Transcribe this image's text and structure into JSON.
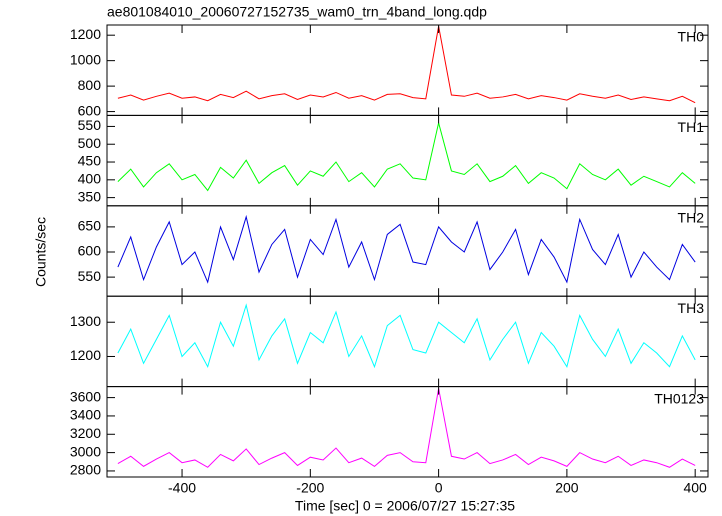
{
  "title": "ae801084010_20060727152735_wam0_trn_4band_long.qdp",
  "xlabel": "Time [sec] 0 = 2006/07/27 15:27:35",
  "ylabel": "Counts/sec",
  "chart_data": [
    {
      "type": "line",
      "x": [
        -500,
        -480,
        -460,
        -440,
        -420,
        -400,
        -380,
        -360,
        -340,
        -320,
        -300,
        -280,
        -260,
        -240,
        -220,
        -200,
        -180,
        -160,
        -140,
        -120,
        -100,
        -80,
        -60,
        -40,
        -20,
        0,
        20,
        40,
        60,
        80,
        100,
        120,
        140,
        160,
        180,
        200,
        220,
        240,
        260,
        280,
        300,
        320,
        340,
        360,
        380,
        400
      ],
      "series": [
        {
          "name": "TH0",
          "color": "#ff0000",
          "values": [
            705,
            730,
            690,
            720,
            745,
            705,
            715,
            685,
            735,
            710,
            760,
            700,
            725,
            740,
            695,
            730,
            715,
            750,
            705,
            725,
            690,
            735,
            740,
            710,
            700,
            1270,
            730,
            720,
            745,
            705,
            715,
            735,
            700,
            725,
            710,
            690,
            740,
            720,
            705,
            730,
            695,
            715,
            700,
            685,
            720,
            670
          ]
        }
      ],
      "xlim": [
        -517,
        420
      ],
      "xticks": [
        -400,
        -200,
        0,
        200,
        400
      ],
      "ylim": [
        570,
        1280
      ],
      "yticks": [
        600,
        800,
        1000,
        1200
      ]
    },
    {
      "type": "line",
      "x": [
        -500,
        -480,
        -460,
        -440,
        -420,
        -400,
        -380,
        -360,
        -340,
        -320,
        -300,
        -280,
        -260,
        -240,
        -220,
        -200,
        -180,
        -160,
        -140,
        -120,
        -100,
        -80,
        -60,
        -40,
        -20,
        0,
        20,
        40,
        60,
        80,
        100,
        120,
        140,
        160,
        180,
        200,
        220,
        240,
        260,
        280,
        300,
        320,
        340,
        360,
        380,
        400
      ],
      "series": [
        {
          "name": "TH1",
          "color": "#00ff00",
          "values": [
            395,
            430,
            380,
            420,
            445,
            400,
            415,
            370,
            435,
            405,
            455,
            390,
            420,
            440,
            385,
            425,
            410,
            450,
            395,
            420,
            380,
            430,
            445,
            405,
            400,
            560,
            425,
            415,
            445,
            395,
            410,
            440,
            390,
            420,
            405,
            375,
            445,
            415,
            400,
            430,
            385,
            410,
            395,
            380,
            420,
            390
          ]
        }
      ],
      "xlim": [
        -517,
        420
      ],
      "xticks": [
        -400,
        -200,
        0,
        200,
        400
      ],
      "ylim": [
        327,
        581
      ],
      "yticks": [
        350,
        400,
        450,
        500,
        550
      ]
    },
    {
      "type": "line",
      "x": [
        -500,
        -480,
        -460,
        -440,
        -420,
        -400,
        -380,
        -360,
        -340,
        -320,
        -300,
        -280,
        -260,
        -240,
        -220,
        -200,
        -180,
        -160,
        -140,
        -120,
        -100,
        -80,
        -60,
        -40,
        -20,
        0,
        20,
        40,
        60,
        80,
        100,
        120,
        140,
        160,
        180,
        200,
        220,
        240,
        260,
        280,
        300,
        320,
        340,
        360,
        380,
        400
      ],
      "series": [
        {
          "name": "TH2",
          "color": "#0000e0",
          "values": [
            570,
            630,
            545,
            610,
            660,
            575,
            600,
            540,
            650,
            585,
            670,
            560,
            615,
            645,
            550,
            625,
            595,
            665,
            570,
            620,
            545,
            635,
            655,
            580,
            575,
            650,
            620,
            600,
            660,
            565,
            600,
            645,
            555,
            625,
            590,
            540,
            665,
            605,
            575,
            635,
            550,
            600,
            570,
            545,
            615,
            580
          ]
        }
      ],
      "xlim": [
        -517,
        420
      ],
      "xticks": [
        -400,
        -200,
        0,
        200,
        400
      ],
      "ylim": [
        512,
        692
      ],
      "yticks": [
        550,
        600,
        650
      ]
    },
    {
      "type": "line",
      "x": [
        -500,
        -480,
        -460,
        -440,
        -420,
        -400,
        -380,
        -360,
        -340,
        -320,
        -300,
        -280,
        -260,
        -240,
        -220,
        -200,
        -180,
        -160,
        -140,
        -120,
        -100,
        -80,
        -60,
        -40,
        -20,
        0,
        20,
        40,
        60,
        80,
        100,
        120,
        140,
        160,
        180,
        200,
        220,
        240,
        260,
        280,
        300,
        320,
        340,
        360,
        380,
        400
      ],
      "series": [
        {
          "name": "TH3",
          "color": "#00ffff",
          "values": [
            1210,
            1280,
            1180,
            1250,
            1320,
            1200,
            1240,
            1170,
            1300,
            1230,
            1350,
            1190,
            1260,
            1310,
            1180,
            1270,
            1240,
            1330,
            1200,
            1260,
            1170,
            1290,
            1320,
            1220,
            1210,
            1300,
            1270,
            1240,
            1310,
            1190,
            1250,
            1300,
            1180,
            1270,
            1230,
            1170,
            1320,
            1250,
            1200,
            1280,
            1180,
            1240,
            1210,
            1170,
            1260,
            1190
          ]
        }
      ],
      "xlim": [
        -517,
        420
      ],
      "xticks": [
        -400,
        -200,
        0,
        200,
        400
      ],
      "ylim": [
        1112,
        1376
      ],
      "yticks": [
        1200,
        1300
      ]
    },
    {
      "type": "line",
      "x": [
        -500,
        -480,
        -460,
        -440,
        -420,
        -400,
        -380,
        -360,
        -340,
        -320,
        -300,
        -280,
        -260,
        -240,
        -220,
        -200,
        -180,
        -160,
        -140,
        -120,
        -100,
        -80,
        -60,
        -40,
        -20,
        0,
        20,
        40,
        60,
        80,
        100,
        120,
        140,
        160,
        180,
        200,
        220,
        240,
        260,
        280,
        300,
        320,
        340,
        360,
        380,
        400
      ],
      "series": [
        {
          "name": "TH0123",
          "color": "#ff00ff",
          "values": [
            2880,
            2960,
            2850,
            2930,
            3000,
            2890,
            2920,
            2840,
            2980,
            2910,
            3040,
            2870,
            2940,
            3000,
            2860,
            2950,
            2920,
            3050,
            2890,
            2940,
            2850,
            2970,
            3000,
            2900,
            2890,
            3700,
            2960,
            2930,
            3000,
            2880,
            2920,
            2980,
            2870,
            2950,
            2910,
            2850,
            3000,
            2930,
            2890,
            2960,
            2860,
            2920,
            2890,
            2840,
            2930,
            2860
          ]
        }
      ],
      "xlim": [
        -517,
        420
      ],
      "xticks": [
        -400,
        -200,
        0,
        200,
        400
      ],
      "ylim": [
        2734,
        3720
      ],
      "yticks": [
        2800,
        3000,
        3200,
        3400,
        3600
      ]
    }
  ]
}
